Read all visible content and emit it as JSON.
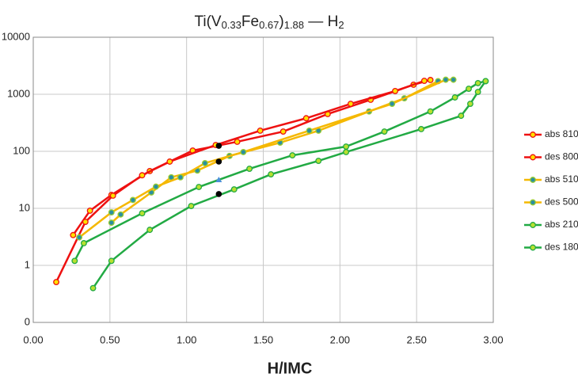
{
  "chart_data": {
    "type": "line",
    "title": [
      {
        "text": "Ti(V"
      },
      {
        "text": "0.33",
        "sub": true
      },
      {
        "text": "Fe"
      },
      {
        "text": "0.67",
        "sub": true
      },
      {
        "text": ")"
      },
      {
        "text": "1.88",
        "sub": true
      },
      {
        "text": " — H"
      },
      {
        "text": "2",
        "sub": true
      }
    ],
    "x_label": "H/IMC",
    "xlim": [
      0,
      3
    ],
    "xticks": [
      {
        "value": 0,
        "label": "0.00"
      },
      {
        "value": 0.5,
        "label": "0.50"
      },
      {
        "value": 1,
        "label": "1.00"
      },
      {
        "value": 1.5,
        "label": "1.50"
      },
      {
        "value": 2,
        "label": "2.00"
      },
      {
        "value": 2.5,
        "label": "2.50"
      },
      {
        "value": 3,
        "label": "3.00"
      }
    ],
    "ylim": [
      0.1,
      10000
    ],
    "yscale": "log",
    "yticks": [
      {
        "value": 0.1,
        "label": "0"
      },
      1,
      10,
      100,
      1000,
      10000
    ],
    "grid": true,
    "legend": "right",
    "series": [
      {
        "name": "abs 810",
        "color": "#ee1111",
        "marker_fill": "#ffe000",
        "marker_stroke": "#ee1111",
        "x": [
          0.26,
          0.37,
          0.51,
          0.76,
          1.04,
          1.33,
          1.63,
          1.92,
          2.2,
          2.48,
          2.59
        ],
        "values": [
          3.4,
          9.1,
          17.2,
          45,
          103,
          147,
          222,
          450,
          800,
          1470,
          1780
        ]
      },
      {
        "name": "des 800",
        "color": "#ee1111",
        "marker_fill": "#ffe000",
        "marker_stroke": "#ee1111",
        "x": [
          0.15,
          0.34,
          0.52,
          0.71,
          0.89,
          1.19,
          1.48,
          1.78,
          2.07,
          2.36,
          2.55
        ],
        "values": [
          0.51,
          5.8,
          16.7,
          38,
          66,
          129,
          230,
          380,
          680,
          1140,
          1720
        ]
      },
      {
        "name": "abs 510",
        "color": "#f5b800",
        "marker_fill": "#2a8fa0",
        "marker_stroke": "#9acd32",
        "x": [
          0.51,
          0.57,
          0.77,
          0.9,
          1.07,
          1.28,
          1.61,
          1.86,
          2.19,
          2.42,
          2.64
        ],
        "values": [
          5.6,
          7.8,
          19,
          35,
          46,
          83,
          142,
          230,
          500,
          850,
          1700
        ]
      },
      {
        "name": "des 500",
        "color": "#f5b800",
        "marker_fill": "#2a8fa0",
        "marker_stroke": "#9acd32",
        "x": [
          0.3,
          0.51,
          0.65,
          0.8,
          0.96,
          1.12,
          1.37,
          1.8,
          2.34,
          2.69,
          2.74
        ],
        "values": [
          3.1,
          8.5,
          14,
          24,
          35,
          62,
          97,
          230,
          680,
          1800,
          1800
        ]
      },
      {
        "name": "abs 210",
        "color": "#22aa44",
        "marker_fill": "#b8e030",
        "marker_stroke": "#22aa44",
        "x": [
          0.27,
          0.33,
          0.71,
          1.08,
          1.41,
          1.69,
          2.04,
          2.29,
          2.59,
          2.75,
          2.84,
          2.9,
          2.95
        ],
        "values": [
          1.2,
          2.45,
          8.2,
          23.7,
          49.4,
          85,
          121,
          222,
          500,
          880,
          1250,
          1570,
          1700
        ]
      },
      {
        "name": "des 180",
        "color": "#22aa44",
        "marker_fill": "#b8e030",
        "marker_stroke": "#22aa44",
        "x": [
          0.39,
          0.51,
          0.76,
          1.03,
          1.31,
          1.55,
          1.86,
          2.04,
          2.53,
          2.79,
          2.85,
          2.9,
          2.95
        ],
        "values": [
          0.4,
          1.2,
          4.2,
          11,
          21.5,
          39.5,
          68,
          97,
          245,
          420,
          680,
          1100,
          1700
        ]
      }
    ],
    "extra_points": [
      {
        "color": "#000000",
        "marker": "circle",
        "x": [
          1.21,
          1.21,
          1.21
        ],
        "values": [
          125,
          66,
          17.8
        ]
      },
      {
        "color": "#4a90d9",
        "marker": "triangle",
        "x": [
          1.21
        ],
        "values": [
          31.6
        ]
      }
    ]
  }
}
